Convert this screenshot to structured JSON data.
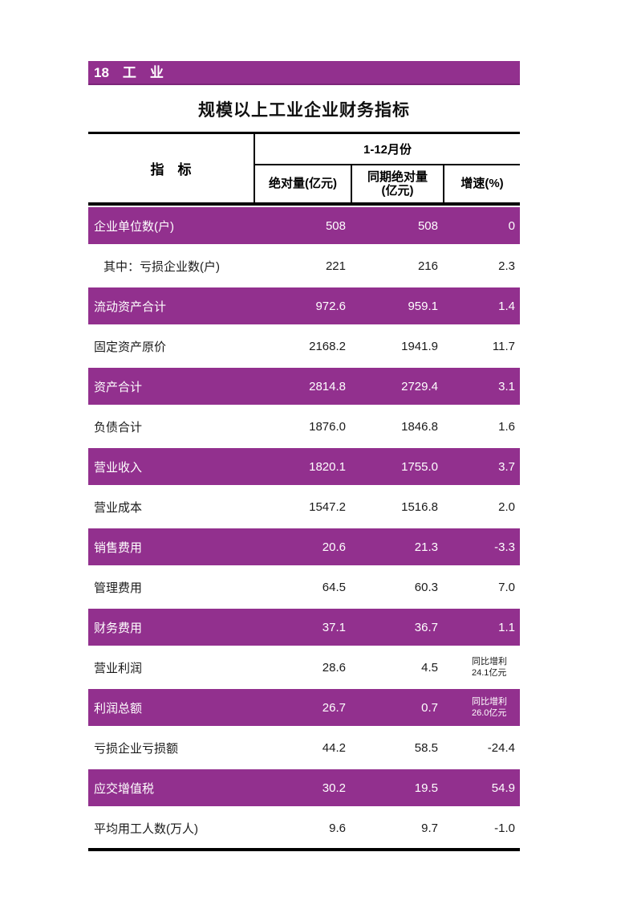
{
  "colors": {
    "accent_purple": "#92308E",
    "band_text": "#ffffff",
    "table_border": "#000000"
  },
  "page": {
    "section_title": "18　工　业",
    "table_title": "规模以上工业企业财务指标"
  },
  "table": {
    "header": {
      "indicator": "指　标",
      "period": "1-12月份",
      "col_absolute": "绝对量(亿元)",
      "col_prev_absolute": "同期绝对量\n(亿元)",
      "col_growth": "增速(%)"
    },
    "rows": [
      {
        "label": "企业单位数(户)",
        "absolute": "508",
        "prev": "508",
        "growth": "0"
      },
      {
        "label": "其中：亏损企业数(户)",
        "absolute": "221",
        "prev": "216",
        "growth": "2.3"
      },
      {
        "label": "流动资产合计",
        "absolute": "972.6",
        "prev": "959.1",
        "growth": "1.4"
      },
      {
        "label": "固定资产原价",
        "absolute": "2168.2",
        "prev": "1941.9",
        "growth": "11.7"
      },
      {
        "label": "资产合计",
        "absolute": "2814.8",
        "prev": "2729.4",
        "growth": "3.1"
      },
      {
        "label": "负债合计",
        "absolute": "1876.0",
        "prev": "1846.8",
        "growth": "1.6"
      },
      {
        "label": "营业收入",
        "absolute": "1820.1",
        "prev": "1755.0",
        "growth": "3.7"
      },
      {
        "label": "营业成本",
        "absolute": "1547.2",
        "prev": "1516.8",
        "growth": "2.0"
      },
      {
        "label": "销售费用",
        "absolute": "20.6",
        "prev": "21.3",
        "growth": "-3.3"
      },
      {
        "label": "管理费用",
        "absolute": "64.5",
        "prev": "60.3",
        "growth": "7.0"
      },
      {
        "label": "财务费用",
        "absolute": "37.1",
        "prev": "36.7",
        "growth": "1.1"
      },
      {
        "label": "营业利润",
        "absolute": "28.6",
        "prev": "4.5",
        "growth": "同比增利\n24.1亿元"
      },
      {
        "label": "利润总额",
        "absolute": "26.7",
        "prev": "0.7",
        "growth": "同比增利\n26.0亿元"
      },
      {
        "label": "亏损企业亏损额",
        "absolute": "44.2",
        "prev": "58.5",
        "growth": "-24.4"
      },
      {
        "label": "应交增值税",
        "absolute": "30.2",
        "prev": "19.5",
        "growth": "54.9"
      },
      {
        "label": "平均用工人数(万人)",
        "absolute": "9.6",
        "prev": "9.7",
        "growth": "-1.0"
      }
    ]
  }
}
